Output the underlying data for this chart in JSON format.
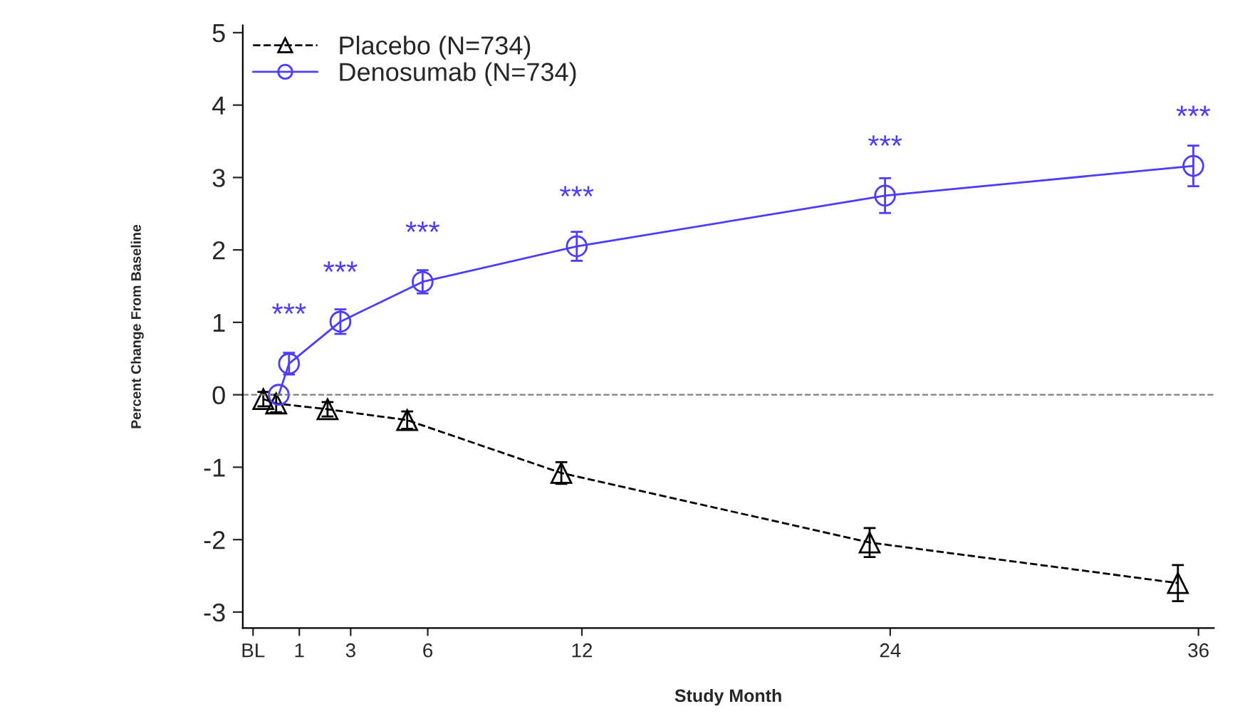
{
  "chart_data": {
    "type": "line",
    "xlabel": "Study Month",
    "ylabel": "Percent Change From Baseline",
    "xlim": [
      -1.2,
      36.6
    ],
    "ylim": [
      -3.22,
      5.1
    ],
    "xticks": [
      {
        "value": -0.8,
        "label": "BL"
      },
      1,
      3,
      6,
      12,
      24,
      36
    ],
    "yticks": [
      -3,
      -2,
      -1,
      0,
      1,
      2,
      3,
      4,
      5
    ],
    "grid": false,
    "legend": "top left",
    "series": [
      {
        "name": "Placebo (N=734)",
        "color": "#000000",
        "line_style": "dashed",
        "marker": "triangle",
        "x": [
          -0.4,
          0.1,
          2.1,
          5.2,
          11.2,
          23.2,
          35.2
        ],
        "values": [
          -0.06,
          -0.12,
          -0.2,
          -0.35,
          -1.08,
          -2.04,
          -2.6
        ],
        "errors": [
          0.1,
          0.12,
          0.1,
          0.12,
          0.15,
          0.2,
          0.25
        ]
      },
      {
        "name": "Denosumab (N=734)",
        "color": "#4b3cff",
        "line_style": "solid",
        "marker": "circle",
        "x": [
          0.2,
          0.6,
          2.6,
          5.8,
          11.8,
          23.8,
          35.8
        ],
        "values": [
          0,
          0.43,
          1.01,
          1.56,
          2.05,
          2.75,
          3.16
        ],
        "errors": [
          null,
          0.15,
          0.17,
          0.16,
          0.2,
          0.24,
          0.28
        ]
      }
    ],
    "ref_lines": [
      {
        "axis": "y",
        "value": 0,
        "color": "#808080",
        "line_style": "dashed"
      }
    ],
    "annotations": [
      {
        "text": "***",
        "x": 0.6,
        "y": 0.43
      },
      {
        "text": "***",
        "x": 2.6,
        "y": 1.01
      },
      {
        "text": "***",
        "x": 5.8,
        "y": 1.56
      },
      {
        "text": "***",
        "x": 11.8,
        "y": 2.05
      },
      {
        "text": "***",
        "x": 23.8,
        "y": 2.75
      },
      {
        "text": "***",
        "x": 35.8,
        "y": 3.16
      }
    ]
  }
}
